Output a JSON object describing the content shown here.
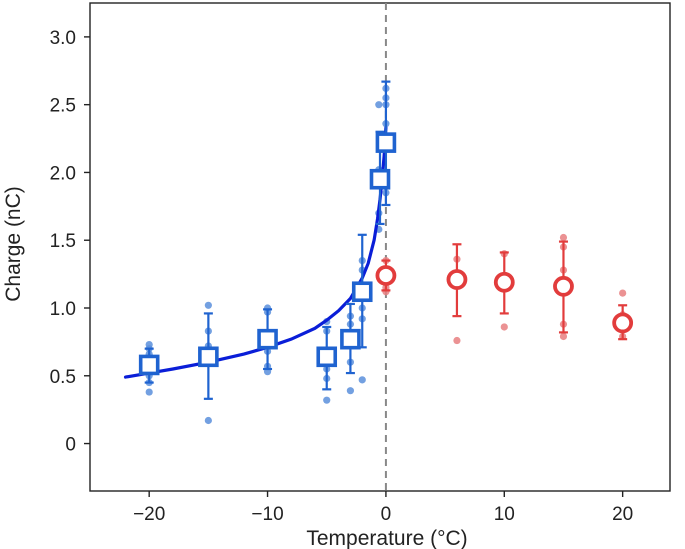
{
  "chart_data": {
    "type": "scatter",
    "xlabel": "Temperature (°C)",
    "ylabel": "Charge (nC)",
    "xlim": [
      -25,
      24
    ],
    "ylim": [
      -0.35,
      3.25
    ],
    "x_ticks": [
      -20,
      -10,
      0,
      10,
      20
    ],
    "x_tick_labels": [
      "−20",
      "−10",
      "0",
      "10",
      "20"
    ],
    "y_ticks": [
      0,
      0.5,
      1.0,
      1.5,
      2.0,
      2.5,
      3.0
    ],
    "y_tick_labels": [
      "0",
      "0.5",
      "1.0",
      "1.5",
      "2.0",
      "2.5",
      "3.0"
    ],
    "reference_line_x": 0,
    "colors": {
      "cold_points": "#5b8fdc",
      "cold_markers": "#1f63d0",
      "fit_curve": "#0a1ed8",
      "warm_points": "#e87f80",
      "warm_markers": "#e23c3c",
      "reference_line": "#888888",
      "axis": "#222222"
    },
    "series": [
      {
        "marker": "square",
        "color": "#1f63d0",
        "points": [
          {
            "x": -20,
            "y": 0.58,
            "yerr": [
              0.45,
              0.7
            ]
          },
          {
            "x": -15,
            "y": 0.64,
            "yerr": [
              0.33,
              0.96
            ]
          },
          {
            "x": -10,
            "y": 0.77,
            "yerr": [
              0.55,
              0.99
            ]
          },
          {
            "x": -5,
            "y": 0.64,
            "yerr": [
              0.4,
              0.86
            ]
          },
          {
            "x": -3,
            "y": 0.77,
            "yerr": [
              0.52,
              1.03
            ]
          },
          {
            "x": -2,
            "y": 1.12,
            "yerr": [
              0.71,
              1.54
            ]
          },
          {
            "x": -0.5,
            "y": 1.95,
            "yerr": [
              1.62,
              2.3
            ]
          },
          {
            "x": 0,
            "y": 2.22,
            "yerr": [
              1.76,
              2.67
            ]
          }
        ]
      },
      {
        "marker": "circle",
        "color": "#e23c3c",
        "points": [
          {
            "x": 0,
            "y": 1.24,
            "yerr": [
              1.13,
              1.35
            ]
          },
          {
            "x": 6,
            "y": 1.21,
            "yerr": [
              0.94,
              1.47
            ]
          },
          {
            "x": 10,
            "y": 1.19,
            "yerr": [
              0.96,
              1.41
            ]
          },
          {
            "x": 15,
            "y": 1.16,
            "yerr": [
              0.82,
              1.49
            ]
          },
          {
            "x": 20,
            "y": 0.89,
            "yerr": [
              0.77,
              1.02
            ]
          }
        ]
      },
      {
        "marker": "dot",
        "color": "#5b8fdc",
        "points": [
          {
            "x": -20,
            "y": 0.73
          },
          {
            "x": -20,
            "y": 0.7
          },
          {
            "x": -20,
            "y": 0.66
          },
          {
            "x": -20,
            "y": 0.5
          },
          {
            "x": -20,
            "y": 0.45
          },
          {
            "x": -20,
            "y": 0.38
          },
          {
            "x": -15,
            "y": 1.02
          },
          {
            "x": -15,
            "y": 0.83
          },
          {
            "x": -15,
            "y": 0.72
          },
          {
            "x": -15,
            "y": 0.17
          },
          {
            "x": -10,
            "y": 1.0
          },
          {
            "x": -10,
            "y": 0.97
          },
          {
            "x": -10,
            "y": 0.68
          },
          {
            "x": -10,
            "y": 0.57
          },
          {
            "x": -10,
            "y": 0.53
          },
          {
            "x": -5,
            "y": 0.9
          },
          {
            "x": -5,
            "y": 0.83
          },
          {
            "x": -5,
            "y": 0.55
          },
          {
            "x": -5,
            "y": 0.48
          },
          {
            "x": -5,
            "y": 0.32
          },
          {
            "x": -3,
            "y": 0.94
          },
          {
            "x": -3,
            "y": 0.88
          },
          {
            "x": -3,
            "y": 0.6
          },
          {
            "x": -3,
            "y": 0.39
          },
          {
            "x": -2,
            "y": 1.35
          },
          {
            "x": -2,
            "y": 1.28
          },
          {
            "x": -2,
            "y": 1.0
          },
          {
            "x": -2,
            "y": 0.92
          },
          {
            "x": -2,
            "y": 0.47
          },
          {
            "x": -0.6,
            "y": 2.5
          },
          {
            "x": -0.6,
            "y": 2.02
          },
          {
            "x": -0.6,
            "y": 1.7
          },
          {
            "x": -0.6,
            "y": 1.58
          },
          {
            "x": 0,
            "y": 2.62
          },
          {
            "x": 0,
            "y": 2.55
          },
          {
            "x": 0,
            "y": 2.5
          },
          {
            "x": 0,
            "y": 2.36
          },
          {
            "x": 0,
            "y": 2.24
          },
          {
            "x": 0,
            "y": 1.95
          },
          {
            "x": 0,
            "y": 1.85
          }
        ]
      },
      {
        "marker": "dot",
        "color": "#e87f80",
        "points": [
          {
            "x": 0,
            "y": 1.35
          },
          {
            "x": 0,
            "y": 1.28
          },
          {
            "x": 0,
            "y": 1.15
          },
          {
            "x": 0,
            "y": 1.12
          },
          {
            "x": 6,
            "y": 1.36
          },
          {
            "x": 6,
            "y": 1.26
          },
          {
            "x": 6,
            "y": 0.76
          },
          {
            "x": 10,
            "y": 1.4
          },
          {
            "x": 10,
            "y": 1.2
          },
          {
            "x": 10,
            "y": 0.86
          },
          {
            "x": 15,
            "y": 1.52
          },
          {
            "x": 15,
            "y": 1.45
          },
          {
            "x": 15,
            "y": 1.28
          },
          {
            "x": 15,
            "y": 0.88
          },
          {
            "x": 15,
            "y": 0.79
          },
          {
            "x": 20,
            "y": 1.11
          },
          {
            "x": 20,
            "y": 0.95
          },
          {
            "x": 20,
            "y": 0.86
          },
          {
            "x": 20,
            "y": 0.79
          }
        ]
      },
      {
        "kind": "fit-curve",
        "color": "#0a1ed8",
        "points": [
          {
            "x": -22,
            "y": 0.49
          },
          {
            "x": -20,
            "y": 0.52
          },
          {
            "x": -18,
            "y": 0.55
          },
          {
            "x": -15,
            "y": 0.6
          },
          {
            "x": -12,
            "y": 0.66
          },
          {
            "x": -10,
            "y": 0.71
          },
          {
            "x": -8,
            "y": 0.77
          },
          {
            "x": -6,
            "y": 0.85
          },
          {
            "x": -5,
            "y": 0.91
          },
          {
            "x": -4,
            "y": 0.98
          },
          {
            "x": -3,
            "y": 1.07
          },
          {
            "x": -2,
            "y": 1.22
          },
          {
            "x": -1.5,
            "y": 1.33
          },
          {
            "x": -1,
            "y": 1.5
          },
          {
            "x": -0.7,
            "y": 1.66
          },
          {
            "x": -0.5,
            "y": 1.8
          },
          {
            "x": -0.3,
            "y": 1.97
          },
          {
            "x": -0.15,
            "y": 2.12
          },
          {
            "x": -0.05,
            "y": 2.25
          },
          {
            "x": 0,
            "y": 2.33
          }
        ]
      }
    ]
  }
}
